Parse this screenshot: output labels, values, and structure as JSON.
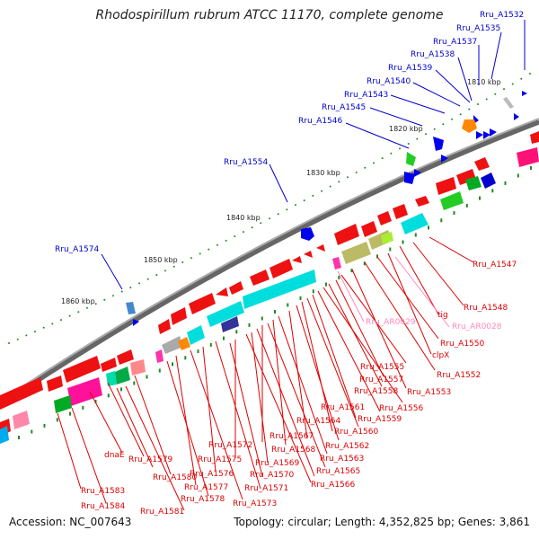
{
  "title": "Rhodospirillum rubrum ATCC 11170, complete genome",
  "footer": {
    "accession": "Accession: NC_007643",
    "summary": "Topology: circular; Length: 4,352,825 bp; Genes: 3,861"
  },
  "scale_labels": [
    "1810 kbp",
    "1820 kbp",
    "1830 kbp",
    "1840 kbp",
    "1850 kbp",
    "1860 kbp"
  ],
  "top_labels": [
    "Rru_A1532",
    "Rru_A1535",
    "Rru_A1537",
    "Rru_A1538",
    "Rru_A1539",
    "Rru_A1540",
    "Rru_A1543",
    "Rru_A1545",
    "Rru_A1546",
    "Rru_A1554",
    "Rru_A1574"
  ],
  "bottom_labels": [
    "Rru_A1547",
    "Rru_A1548",
    "tig",
    "Rru_AR0028",
    "Rru_AR0029",
    "clpX",
    "Rru_A1550",
    "Rru_A1552",
    "Rru_A1553",
    "Rru_A1555",
    "Rru_A1557",
    "Rru_A1558",
    "Rru_A1556",
    "Rru_A1561",
    "Rru_A1559",
    "Rru_A1564",
    "Rru_A1560",
    "Rru_A1567",
    "Rru_A1562",
    "Rru_A1568",
    "Rru_A1563",
    "Rru_A1572",
    "Rru_A1565",
    "Rru_A1569",
    "Rru_A1566",
    "Rru_A1575",
    "Rru_A1570",
    "dnaE",
    "Rru_A1579",
    "Rru_A1576",
    "Rru_A1571",
    "Rru_A1580",
    "Rru_A1577",
    "Rru_A1578",
    "Rru_A1573",
    "Rru_A1583",
    "Rru_A1584",
    "Rru_A1581"
  ],
  "colors": {
    "forward_label": "#0000cc",
    "reverse_label": "#dd0000",
    "rna_label": "#ff88bb",
    "backbone": "#888888",
    "tick": "#228822"
  }
}
